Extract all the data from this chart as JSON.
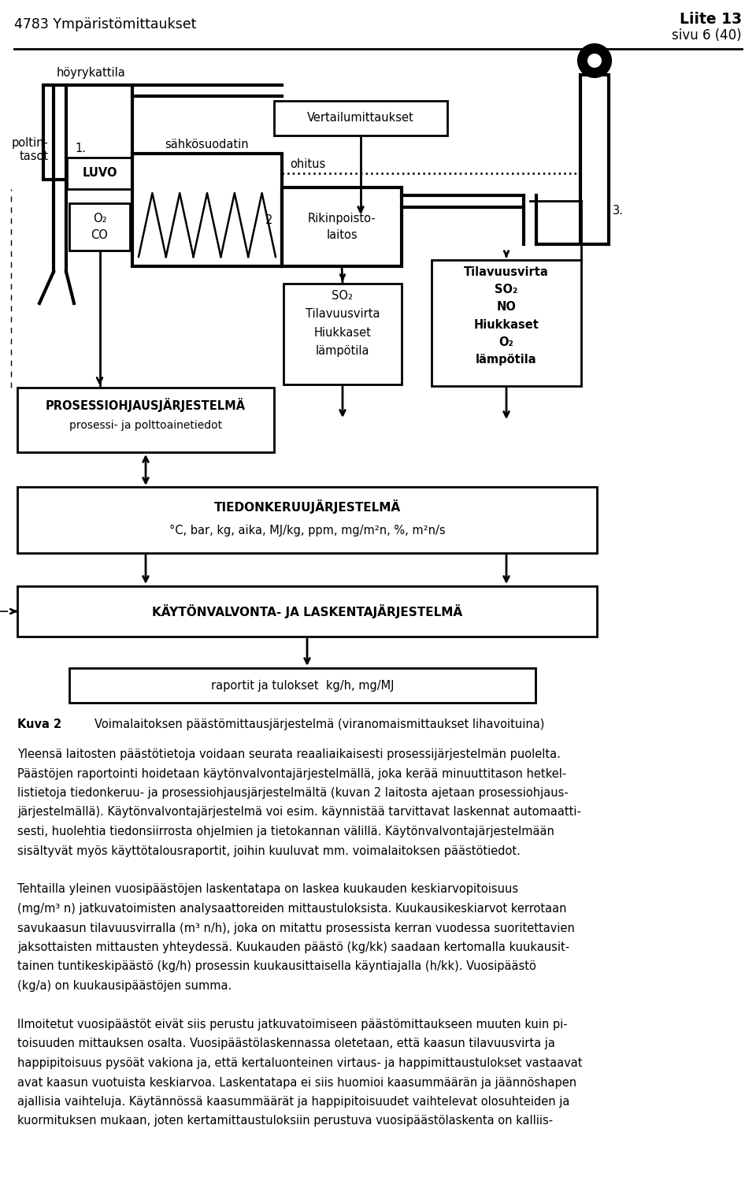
{
  "title_left": "4783 Ympäristömittaukset",
  "title_right_bold": "Liite 13",
  "title_right_sub": "sivu 6 (40)",
  "boiler_label": "höyrykattila",
  "poltin_label": "poltin-\ntasot",
  "luvo_label": "LUVO",
  "o2co_label": "O₂\nCO",
  "sahko_label": "sähkösuodatin",
  "vertailu_label": "Vertailumittaukset",
  "n1": "1.",
  "n2": "2",
  "n3": "3.",
  "ohitus_label": "ohitus",
  "rikin_label": "Rikinpoisto-\nlaitos",
  "so2_box_label": "SO₂\nTilavuusvirta\nHiukkaset\nlämpötila",
  "tilav_box_label": "Tilavuusvirta\nSO₂\nNO\nHiukkaset\nO₂\nlämpötila",
  "prosessi_title": "PROSESSIOHJAUSJÄRJESTELMÄ",
  "prosessi_sub": "prosessi- ja polttoainetiedot",
  "tiedon_title": "TIEDONKERUUJÄRJESTELMÄ",
  "tiedon_sub": "°C, bar, kg, aika, MJ/kg, ppm, mg/m²n, %, m²n/s",
  "kayton_title": "KÄYTÖNVALVONTA- JA LASKENTAJÄRJESTELMÄ",
  "raportit_label": "raportit ja tulokset  kg/h, mg/MJ",
  "kuva2_label": "Kuva 2",
  "kuva2_text": "Voimalaitoksen päästömittausjärjestelmä (viranomaismittaukset lihavoituina)",
  "body_lines": [
    "Yleensä laitosten päästötietoja voidaan seurata reaaliaikaisesti prosessijärjestelmän puolelta.",
    "Päästöjen raportointi hoidetaan käytönvalvontajärjestelmällä, joka kerää minuuttitason hetkel-",
    "listietoja tiedonkeruu- ja prosessiohjausjärjestelmältä (kuvan 2 laitosta ajetaan prosessiohjaus-",
    "järjestelmällä). Käytönvalvontajärjestelmä voi esim. käynnistää tarvittavat laskennat automaatti-",
    "sesti, huolehtia tiedonsiirrosta ohjelmien ja tietokannan välillä. Käytönvalvontajärjestelmään",
    "sisältyvät myös käyttötalousraportit, joihin kuuluvat mm. voimalaitoksen päästötiedot.",
    "",
    "Tehtailla yleinen vuosipäästöjen laskentatapa on laskea kuukauden keskiarvopitoisuus",
    "(mg/m³ n) jatkuvatoimisten analysaattoreiden mittaustuloksista. Kuukausikeskiarvot kerrotaan",
    "savukaasun tilavuusvirralla (m³ n/h), joka on mitattu prosessista kerran vuodessa suoritettavien",
    "jaksottaisten mittausten yhteydessä. Kuukauden päästö (kg/kk) saadaan kertomalla kuukausit-",
    "tainen tuntikeskipäästö (kg/h) prosessin kuukausittaisella käyntiajalla (h/kk). Vuosipäästö",
    "(kg/a) on kuukausipäästöjen summa.",
    "",
    "Ilmoitetut vuosipäästöt eivät siis perustu jatkuvatoimiseen päästömittaukseen muuten kuin pi-",
    "toisuuden mittauksen osalta. Vuosipäästölaskennassa oletetaan, että kaasun tilavuusvirta ja",
    "happipitoisuus pysöät vakiona ja, että kertaluonteinen virtaus- ja happimittaustulokset vastaavat",
    "avat kaasun vuotuista keskiarvoa. Laskentatapa ei siis huomioi kaasummäärän ja jäännöshapen",
    "ajallisia vaihteluja. Käytännössä kaasummäärät ja happipitoisuudet vaihtelevat olosuhteiden ja",
    "kuormituksen mukaan, joten kertamittaustuloksiin perustuva vuosipäästölaskenta on kalliis-"
  ]
}
